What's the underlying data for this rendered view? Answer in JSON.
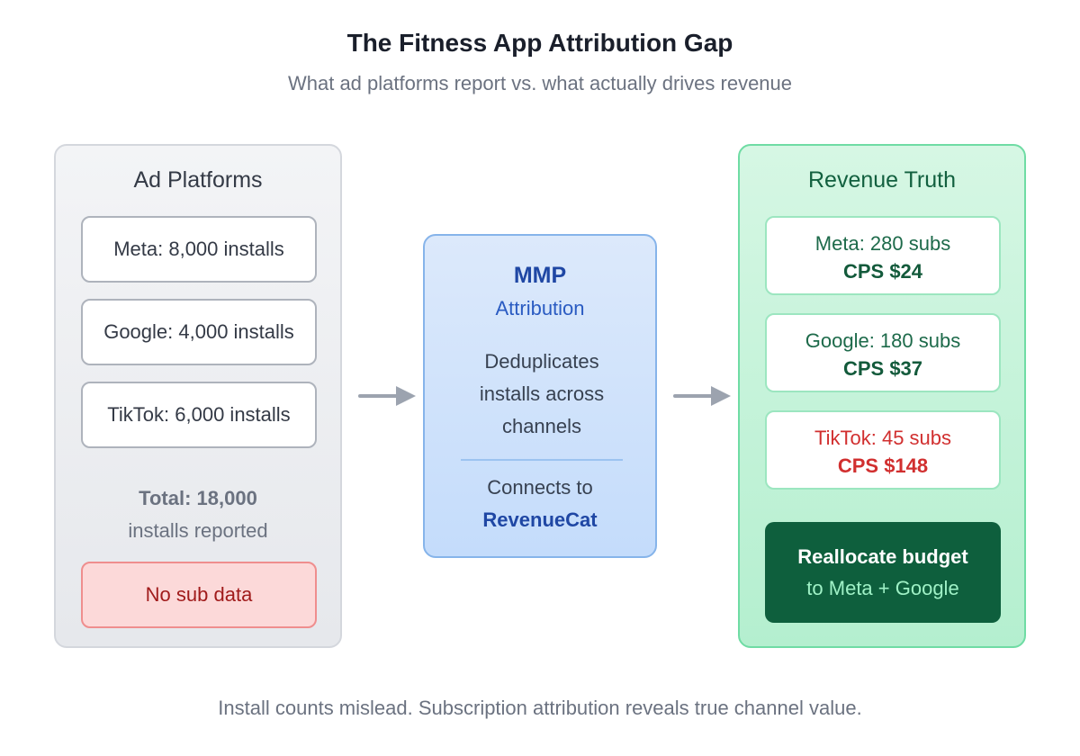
{
  "title": "The Fitness App Attribution Gap",
  "subtitle": "What ad platforms report vs. what actually drives revenue",
  "left_panel": {
    "title": "Ad Platforms",
    "items": [
      {
        "label": "Meta: 8,000 installs"
      },
      {
        "label": "Google: 4,000 installs"
      },
      {
        "label": "TikTok: 6,000 installs"
      }
    ],
    "total_line1": "Total: 18,000",
    "total_line2": "installs reported",
    "warning": "No sub data"
  },
  "middle_panel": {
    "title": "MMP",
    "subtitle": "Attribution",
    "description_lines": [
      "Deduplicates",
      "installs across",
      "channels"
    ],
    "connect_text": "Connects to",
    "connect_target": "RevenueCat"
  },
  "right_panel": {
    "title": "Revenue Truth",
    "items": [
      {
        "subs": "Meta: 280 subs",
        "cps": "CPS $24",
        "status": "good"
      },
      {
        "subs": "Google: 180 subs",
        "cps": "CPS $37",
        "status": "good"
      },
      {
        "subs": "TikTok: 45 subs",
        "cps": "CPS $148",
        "status": "bad"
      }
    ],
    "action_line1": "Reallocate budget",
    "action_line2": "to Meta + Google"
  },
  "footer": "Install counts mislead. Subscription attribution reveals true channel value.",
  "colors": {
    "good": "#135a3b",
    "bad": "#d12f2f",
    "accent_blue": "#1f47a4",
    "action_bg": "#0e5f3d"
  }
}
